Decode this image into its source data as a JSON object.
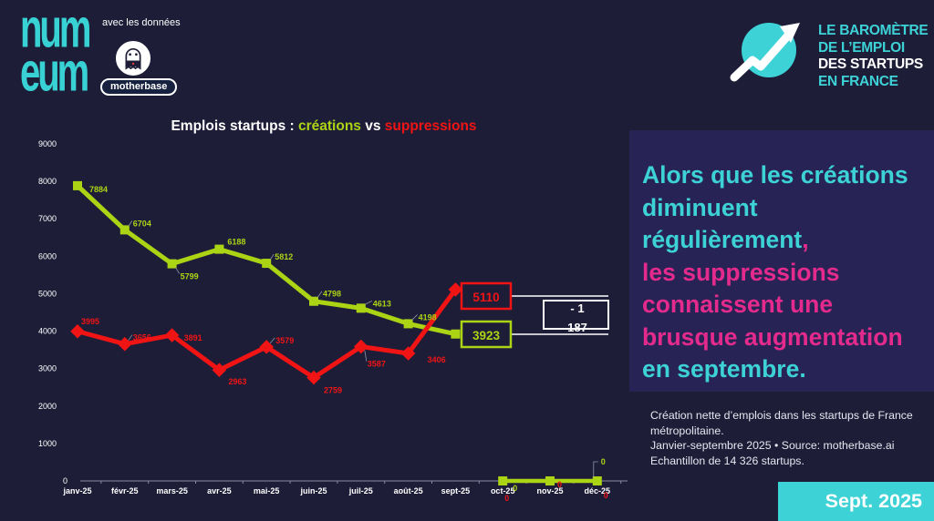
{
  "colors": {
    "teal": "#3dd2d6",
    "pink": "#e42a8c",
    "green": "#abd414",
    "red": "#f01414",
    "white": "#ffffff",
    "page_bg": "#1e1d38",
    "panel_bg": "#272455"
  },
  "header": {
    "numeum_top": "num",
    "numeum_bottom": "eum",
    "with_data_label": "avec les données",
    "motherbase_label": "motherbase",
    "barometer": {
      "line1": "LE BAROMÈTRE",
      "line2": "DE L’EMPLOI",
      "line3": "DES STARTUPS",
      "line4": "EN FRANCE"
    }
  },
  "chart": {
    "title_prefix": "Emplois startups : ",
    "title_series1": "créations",
    "title_vs": " vs ",
    "title_series2": "suppressions"
  },
  "chart_data": {
    "type": "line",
    "title": "Emplois startups : créations vs suppressions",
    "categories": [
      "janv-25",
      "févr-25",
      "mars-25",
      "avr-25",
      "mai-25",
      "juin-25",
      "juil-25",
      "août-25",
      "sept-25",
      "oct-25",
      "nov-25",
      "déc-25"
    ],
    "series": [
      {
        "name": "créations",
        "color": "#abd414",
        "marker": "square",
        "values": [
          7884,
          6704,
          5799,
          6188,
          5812,
          4798,
          4613,
          4198,
          3923,
          0,
          0,
          0
        ]
      },
      {
        "name": "suppressions",
        "color": "#f01414",
        "marker": "diamond",
        "values": [
          3995,
          3656,
          3891,
          2963,
          3579,
          2759,
          3587,
          3406,
          5110,
          0,
          0,
          0
        ]
      }
    ],
    "ylim": [
      0,
      9000
    ],
    "yticks": [
      0,
      1000,
      2000,
      3000,
      4000,
      5000,
      6000,
      7000,
      8000,
      9000
    ],
    "grid": false,
    "legend": "none",
    "callouts": {
      "suppressions_sept_label": "5110",
      "creations_sept_label": "3923",
      "net_line1": "- 1",
      "net_line2": "187"
    }
  },
  "insight": {
    "lines": [
      [
        {
          "text": "Alors que les créations",
          "color": "#3dd2d6"
        }
      ],
      [
        {
          "text": "diminuent régulièrement",
          "color": "#3dd2d6"
        },
        {
          "text": ",",
          "color": "#e42a8c"
        }
      ],
      [
        {
          "text": "les suppressions",
          "color": "#e42a8c"
        }
      ],
      [
        {
          "text": "connaissent une",
          "color": "#e42a8c"
        }
      ],
      [
        {
          "text": "brusque augmentation",
          "color": "#e42a8c"
        }
      ],
      [
        {
          "text": "en septembre.",
          "color": "#3dd2d6"
        }
      ]
    ]
  },
  "caption": {
    "lines": [
      "Création nette d’emplois dans les startups de France métropolitaine.",
      "Janvier-septembre 2025 • Source: motherbase.ai",
      "Echantillon de 14 326 startups."
    ]
  },
  "footer": {
    "date_label": "Sept. 2025"
  }
}
